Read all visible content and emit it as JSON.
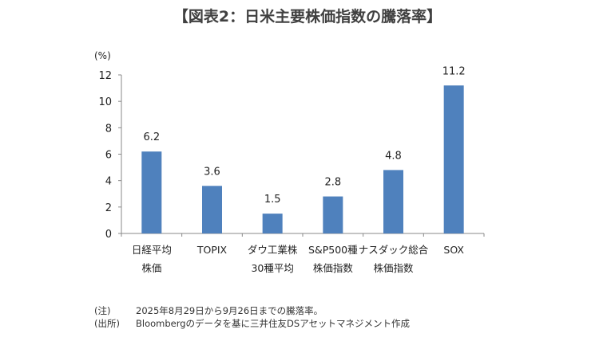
{
  "chart_data": {
    "type": "bar",
    "title": "【図表2：日米主要株価指数の騰落率】",
    "ylabel": "(%)",
    "ylim": [
      0,
      12
    ],
    "yticks": [
      0,
      2,
      4,
      6,
      8,
      10,
      12
    ],
    "categories": [
      [
        "日経平均",
        "株価"
      ],
      [
        "TOPIX"
      ],
      [
        "ダウ工業株",
        "30種平均"
      ],
      [
        "S&P500種",
        "株価指数"
      ],
      [
        "ナスダック総合",
        "株価指数"
      ],
      [
        "SOX"
      ]
    ],
    "values": [
      6.2,
      3.6,
      1.5,
      2.8,
      4.8,
      11.2
    ],
    "data_labels": [
      "6.2",
      "3.6",
      "1.5",
      "2.8",
      "4.8",
      "11.2"
    ],
    "grid": false,
    "bar_color": "#4f81bd"
  },
  "notes": [
    {
      "label": "(注)",
      "text": "2025年8月29日から9月26日までの騰落率。"
    },
    {
      "label": "(出所)",
      "text": "Bloombergのデータを基に三井住友DSアセットマネジメント作成"
    }
  ]
}
